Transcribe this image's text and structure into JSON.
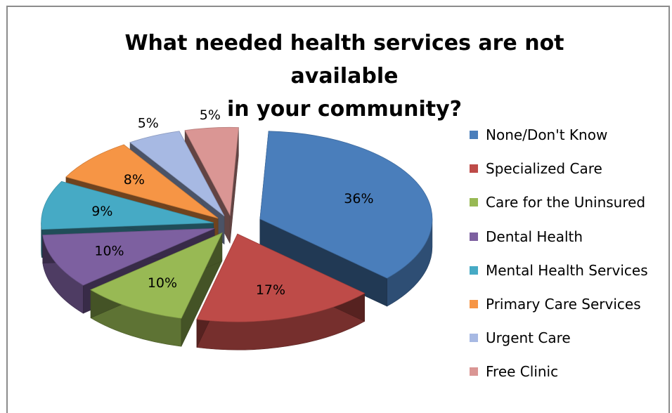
{
  "chart_data": {
    "type": "pie",
    "title": "What needed health services are not available in your community?",
    "title_lines": [
      "What needed health services are not available",
      "in your community?"
    ],
    "style": "3d-exploded",
    "legend_position": "right",
    "slices": [
      {
        "label": "None/Don't Know",
        "value": 36,
        "display": "36%",
        "color": "#4a7ebb"
      },
      {
        "label": "Specialized Care",
        "value": 17,
        "display": "17%",
        "color": "#be4b48"
      },
      {
        "label": "Care for the Uninsured",
        "value": 10,
        "display": "10%",
        "color": "#98b954"
      },
      {
        "label": "Dental Health",
        "value": 10,
        "display": "10%",
        "color": "#7d60a0"
      },
      {
        "label": "Mental Health Services",
        "value": 9,
        "display": "9%",
        "color": "#46aac5"
      },
      {
        "label": "Primary Care Services",
        "value": 8,
        "display": "8%",
        "color": "#f69545"
      },
      {
        "label": "Urgent Care",
        "value": 5,
        "display": "5%",
        "color": "#a7b9e3"
      },
      {
        "label": "Free Clinic",
        "value": 5,
        "display": "5%",
        "color": "#da9694"
      }
    ]
  }
}
